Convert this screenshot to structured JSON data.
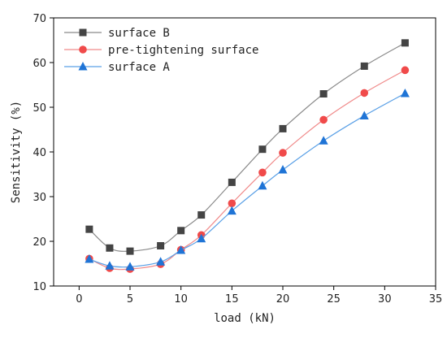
{
  "chart_data": {
    "type": "line",
    "title": "",
    "xlabel": "load (kN)",
    "ylabel": "Sensitivity (%)",
    "xlim": [
      -2.5,
      35
    ],
    "ylim": [
      10,
      70
    ],
    "xticks": [
      0,
      5,
      10,
      15,
      20,
      25,
      30,
      35
    ],
    "yticks": [
      10,
      20,
      30,
      40,
      50,
      60,
      70
    ],
    "legend_position": "top-left",
    "grid": false,
    "x": [
      1,
      3,
      5,
      8,
      10,
      12,
      15,
      18,
      20,
      24,
      28,
      32
    ],
    "series": [
      {
        "name": "surface B",
        "marker": "square",
        "color": "#444444",
        "line_color": "#8a8a8a",
        "values": [
          22.7,
          18.5,
          17.8,
          19.0,
          22.4,
          25.9,
          33.2,
          40.6,
          45.2,
          53.0,
          59.2,
          64.4
        ]
      },
      {
        "name": "pre-tightening surface",
        "marker": "circle",
        "color": "#f04a4a",
        "line_color": "#f08a8a",
        "values": [
          16.1,
          14.0,
          13.8,
          14.9,
          18.1,
          21.4,
          28.5,
          35.4,
          39.8,
          47.2,
          53.2,
          58.3
        ]
      },
      {
        "name": "surface A",
        "marker": "triangle",
        "color": "#1f74d6",
        "line_color": "#5aa0e6",
        "values": [
          16.0,
          14.5,
          14.3,
          15.4,
          18.0,
          20.6,
          26.8,
          32.4,
          36.0,
          42.5,
          48.1,
          53.1
        ]
      }
    ]
  }
}
